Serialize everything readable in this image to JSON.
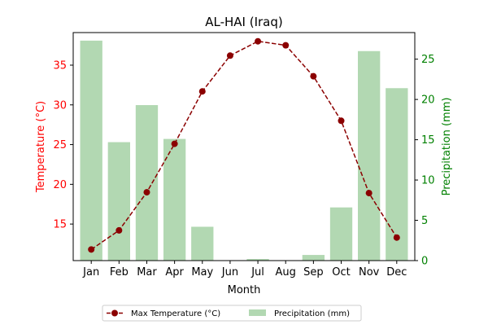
{
  "chart_data": {
    "type": "bar",
    "title": "AL-HAI (Iraq)",
    "xlabel": "Month",
    "categories": [
      "Jan",
      "Feb",
      "Mar",
      "Apr",
      "May",
      "Jun",
      "Jul",
      "Aug",
      "Sep",
      "Oct",
      "Nov",
      "Dec"
    ],
    "y_left": {
      "label": "Temperature (°C)",
      "color": "#ff0000",
      "range": [
        10.4,
        39.1
      ],
      "ticks": [
        15,
        20,
        25,
        30,
        35
      ]
    },
    "y_right": {
      "label": "Precipitation (mm)",
      "color": "#008000",
      "range": [
        0,
        28.3
      ],
      "ticks": [
        0,
        5,
        10,
        15,
        20,
        25
      ]
    },
    "series": [
      {
        "name": "Max Temperature (°C)",
        "type": "line",
        "axis": "left",
        "color": "#8b0000",
        "line_style": "dashed",
        "marker": "circle",
        "values": [
          11.8,
          14.2,
          19.0,
          25.1,
          31.7,
          36.2,
          38.0,
          37.5,
          33.6,
          28.0,
          18.9,
          13.3
        ]
      },
      {
        "name": "Precipitation (mm)",
        "type": "bar",
        "axis": "right",
        "color": "#b2d8b2",
        "values": [
          27.3,
          14.7,
          19.3,
          15.1,
          4.2,
          0.0,
          0.2,
          0.0,
          0.7,
          6.6,
          26.0,
          21.4
        ]
      }
    ],
    "legend": {
      "position": "bottom-center",
      "columns": 2
    },
    "grid": false
  }
}
